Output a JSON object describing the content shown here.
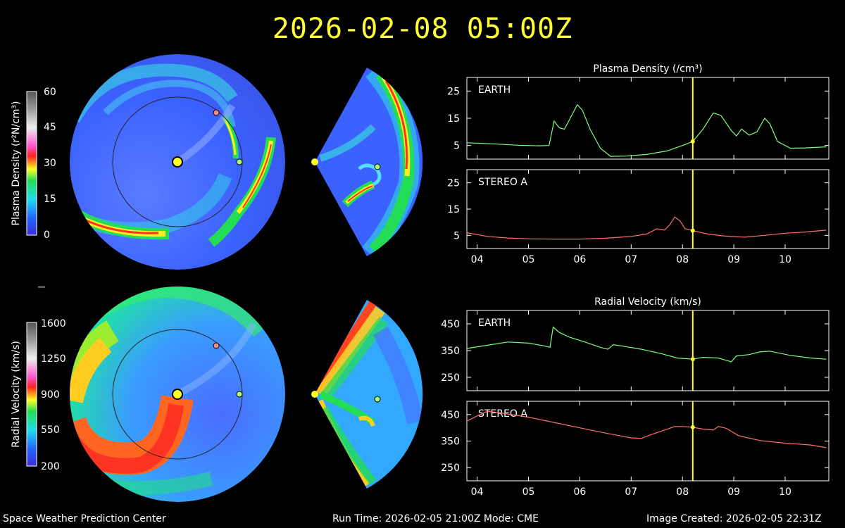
{
  "header": {
    "timestamp": "2026-02-08  05:00Z"
  },
  "footer": {
    "org": "Space Weather Prediction Center",
    "run": "Run Time: 2026-02-05 21:00Z  Mode: CME",
    "created": "Image Created: 2026-02-05 22:31Z"
  },
  "colorbars": {
    "density": {
      "label": "Plasma Density (r²N/cm³)",
      "ticks": [
        "60",
        "45",
        "30",
        "15",
        "0"
      ]
    },
    "velocity": {
      "label": "Radial Velocity (km/s)",
      "ticks": [
        "1600",
        "1250",
        "900",
        "550",
        "200"
      ]
    }
  },
  "colors": {
    "timestamp": "#ffff33",
    "earth_line": "#7dff7d",
    "stereo_line": "#ff6f6f",
    "marker": "#ffff33"
  },
  "chart_data": [
    {
      "type": "line",
      "title": "Plasma Density (/cm³)",
      "panel": "EARTH",
      "ylim": [
        0,
        30
      ],
      "yticks": [
        5,
        15,
        25
      ],
      "x_ticks": [
        "04",
        "05",
        "06",
        "07",
        "08",
        "09",
        "10"
      ],
      "current_time": 8.2,
      "series": [
        {
          "values": [
            [
              3.8,
              6
            ],
            [
              4.3,
              5.6
            ],
            [
              4.8,
              5.1
            ],
            [
              5.2,
              4.9
            ],
            [
              5.4,
              5
            ],
            [
              5.5,
              14
            ],
            [
              5.6,
              11.5
            ],
            [
              5.7,
              11
            ],
            [
              5.8,
              14.5
            ],
            [
              5.95,
              20
            ],
            [
              6.05,
              18
            ],
            [
              6.2,
              11
            ],
            [
              6.4,
              4
            ],
            [
              6.6,
              1
            ],
            [
              6.9,
              1.1
            ],
            [
              7.3,
              1.7
            ],
            [
              7.7,
              3
            ],
            [
              8.0,
              5
            ],
            [
              8.2,
              6.5
            ],
            [
              8.4,
              11
            ],
            [
              8.6,
              17
            ],
            [
              8.75,
              16
            ],
            [
              8.95,
              10.5
            ],
            [
              9.05,
              8.5
            ],
            [
              9.15,
              11
            ],
            [
              9.3,
              8.8
            ],
            [
              9.45,
              10
            ],
            [
              9.6,
              15
            ],
            [
              9.7,
              13
            ],
            [
              9.85,
              6.5
            ],
            [
              10.1,
              4
            ],
            [
              10.4,
              4.1
            ],
            [
              10.8,
              4.5
            ]
          ]
        }
      ]
    },
    {
      "type": "line",
      "panel": "STEREO A",
      "ylim": [
        0,
        30
      ],
      "yticks": [
        5,
        15,
        25
      ],
      "x_ticks": [
        "04",
        "05",
        "06",
        "07",
        "08",
        "09",
        "10"
      ],
      "current_time": 8.2,
      "series": [
        {
          "values": [
            [
              3.8,
              6
            ],
            [
              4.2,
              4.6
            ],
            [
              4.6,
              4
            ],
            [
              5.0,
              3.7
            ],
            [
              5.5,
              3.6
            ],
            [
              6.0,
              3.6
            ],
            [
              6.5,
              3.9
            ],
            [
              7.0,
              4.6
            ],
            [
              7.3,
              5.5
            ],
            [
              7.5,
              7.5
            ],
            [
              7.65,
              7
            ],
            [
              7.75,
              9
            ],
            [
              7.85,
              12
            ],
            [
              7.95,
              10.5
            ],
            [
              8.05,
              7.5
            ],
            [
              8.2,
              6.8
            ],
            [
              8.5,
              5.5
            ],
            [
              8.8,
              4.8
            ],
            [
              9.2,
              4.3
            ],
            [
              9.6,
              5
            ],
            [
              10.0,
              5.8
            ],
            [
              10.4,
              6.3
            ],
            [
              10.8,
              7
            ]
          ]
        }
      ]
    },
    {
      "type": "line",
      "title": "Radial Velocity (km/s)",
      "panel": "EARTH",
      "ylim": [
        200,
        500
      ],
      "yticks": [
        250,
        350,
        450
      ],
      "x_ticks": [
        "04",
        "05",
        "06",
        "07",
        "08",
        "09",
        "10"
      ],
      "current_time": 8.2,
      "series": [
        {
          "values": [
            [
              3.8,
              358
            ],
            [
              4.2,
              370
            ],
            [
              4.6,
              382
            ],
            [
              5.0,
              378
            ],
            [
              5.3,
              368
            ],
            [
              5.42,
              362
            ],
            [
              5.48,
              438
            ],
            [
              5.6,
              418
            ],
            [
              5.8,
              400
            ],
            [
              6.1,
              382
            ],
            [
              6.4,
              362
            ],
            [
              6.55,
              355
            ],
            [
              6.65,
              372
            ],
            [
              6.8,
              368
            ],
            [
              7.2,
              355
            ],
            [
              7.6,
              338
            ],
            [
              7.9,
              322
            ],
            [
              8.2,
              318
            ],
            [
              8.4,
              325
            ],
            [
              8.7,
              322
            ],
            [
              8.95,
              308
            ],
            [
              9.05,
              330
            ],
            [
              9.3,
              335
            ],
            [
              9.5,
              345
            ],
            [
              9.7,
              348
            ],
            [
              10.1,
              332
            ],
            [
              10.5,
              322
            ],
            [
              10.8,
              318
            ]
          ]
        }
      ]
    },
    {
      "type": "line",
      "panel": "STEREO A",
      "ylim": [
        200,
        500
      ],
      "yticks": [
        250,
        350,
        450
      ],
      "x_ticks": [
        "04",
        "05",
        "06",
        "07",
        "08",
        "09",
        "10"
      ],
      "current_time": 8.2,
      "series": [
        {
          "values": [
            [
              3.8,
              425
            ],
            [
              4.0,
              445
            ],
            [
              4.2,
              462
            ],
            [
              4.5,
              455
            ],
            [
              5.0,
              440
            ],
            [
              5.5,
              420
            ],
            [
              6.0,
              400
            ],
            [
              6.5,
              380
            ],
            [
              7.0,
              362
            ],
            [
              7.2,
              360
            ],
            [
              7.4,
              375
            ],
            [
              7.6,
              388
            ],
            [
              7.85,
              405
            ],
            [
              8.0,
              405
            ],
            [
              8.2,
              402
            ],
            [
              8.4,
              395
            ],
            [
              8.6,
              392
            ],
            [
              8.7,
              405
            ],
            [
              8.85,
              398
            ],
            [
              9.1,
              370
            ],
            [
              9.5,
              352
            ],
            [
              10.0,
              342
            ],
            [
              10.5,
              335
            ],
            [
              10.8,
              325
            ]
          ]
        }
      ]
    }
  ]
}
